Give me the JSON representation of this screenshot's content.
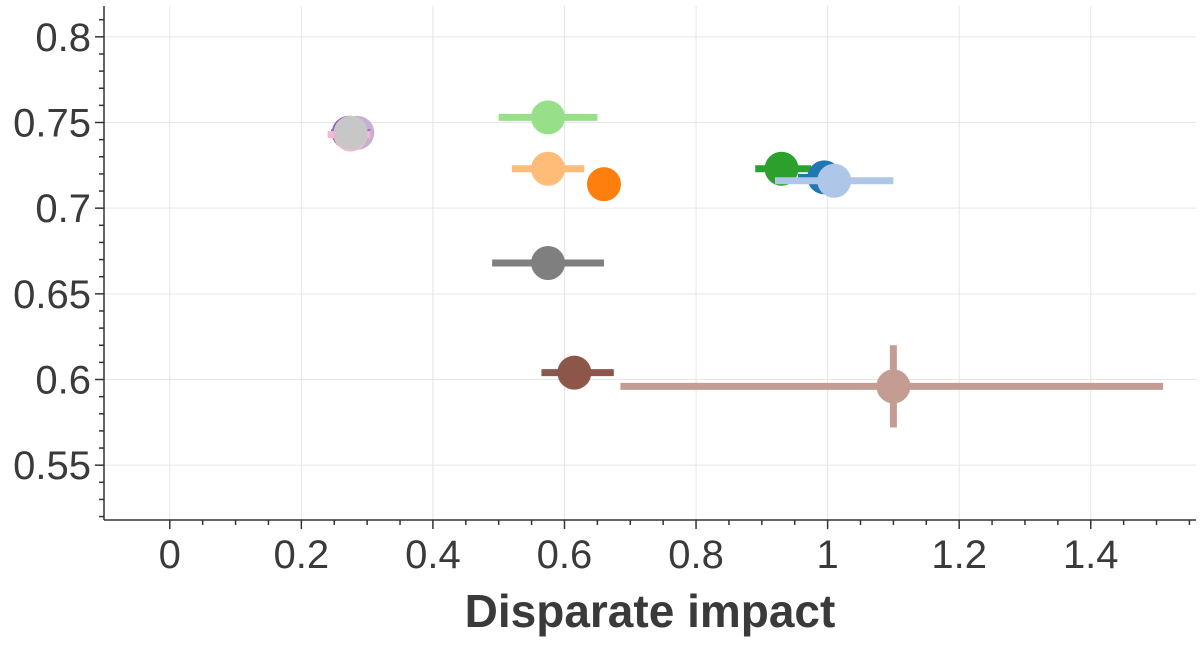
{
  "chart_data": {
    "type": "scatter",
    "title": "",
    "xlabel": "Disparate impact",
    "ylabel": "",
    "xlim": [
      -0.1,
      1.56
    ],
    "ylim": [
      0.518,
      0.818
    ],
    "x_ticks": [
      0,
      0.2,
      0.4,
      0.6,
      0.8,
      1,
      1.2,
      1.4
    ],
    "x_tick_labels": [
      "0",
      "0.2",
      "0.4",
      "0.6",
      "0.8",
      "1",
      "1.2",
      "1.4"
    ],
    "y_ticks": [
      0.55,
      0.6,
      0.65,
      0.7,
      0.75,
      0.8
    ],
    "y_tick_labels": [
      "0.55",
      "0.6",
      "0.65",
      "0.7",
      "0.75",
      "0.8"
    ],
    "grid": true,
    "points": [
      {
        "id": "light-purple",
        "color": "#c5b0d5",
        "x": 0.285,
        "y": 0.744,
        "xerr": [
          0.275,
          0.295
        ],
        "yerr": null
      },
      {
        "id": "purple",
        "color": "#9467bd",
        "x": 0.272,
        "y": 0.744,
        "xerr": [
          0.245,
          0.305
        ],
        "yerr": null
      },
      {
        "id": "pink",
        "color": "#f7b6d2",
        "x": 0.275,
        "y": 0.743,
        "xerr": [
          0.24,
          0.305
        ],
        "yerr": null
      },
      {
        "id": "gray-light",
        "color": "#c7c7c7",
        "x": 0.275,
        "y": 0.744,
        "xerr": [
          0.255,
          0.295
        ],
        "yerr": null
      },
      {
        "id": "light-green",
        "color": "#98df8a",
        "x": 0.575,
        "y": 0.753,
        "xerr": [
          0.5,
          0.65
        ],
        "yerr": null
      },
      {
        "id": "light-orange",
        "color": "#ffbb78",
        "x": 0.575,
        "y": 0.723,
        "xerr": [
          0.52,
          0.63
        ],
        "yerr": null
      },
      {
        "id": "orange",
        "color": "#ff7f0e",
        "x": 0.66,
        "y": 0.714,
        "xerr": null,
        "yerr": null
      },
      {
        "id": "green",
        "color": "#2ca02c",
        "x": 0.93,
        "y": 0.723,
        "xerr": [
          0.89,
          0.975
        ],
        "yerr": null
      },
      {
        "id": "blue",
        "color": "#1f77b4",
        "x": 0.995,
        "y": 0.718,
        "xerr": [
          0.955,
          1.02
        ],
        "yerr": null
      },
      {
        "id": "light-blue",
        "color": "#aec7e8",
        "x": 1.01,
        "y": 0.716,
        "xerr": [
          0.92,
          1.1
        ],
        "yerr": null
      },
      {
        "id": "gray",
        "color": "#7f7f7f",
        "x": 0.575,
        "y": 0.668,
        "xerr": [
          0.49,
          0.66
        ],
        "yerr": null
      },
      {
        "id": "brown",
        "color": "#8c564b",
        "x": 0.615,
        "y": 0.604,
        "xerr": [
          0.565,
          0.675
        ],
        "yerr": null
      },
      {
        "id": "light-brown",
        "color": "#c49c94",
        "x": 1.1,
        "y": 0.596,
        "xerr": [
          0.685,
          1.51
        ],
        "yerr": [
          0.572,
          0.62
        ]
      }
    ]
  }
}
